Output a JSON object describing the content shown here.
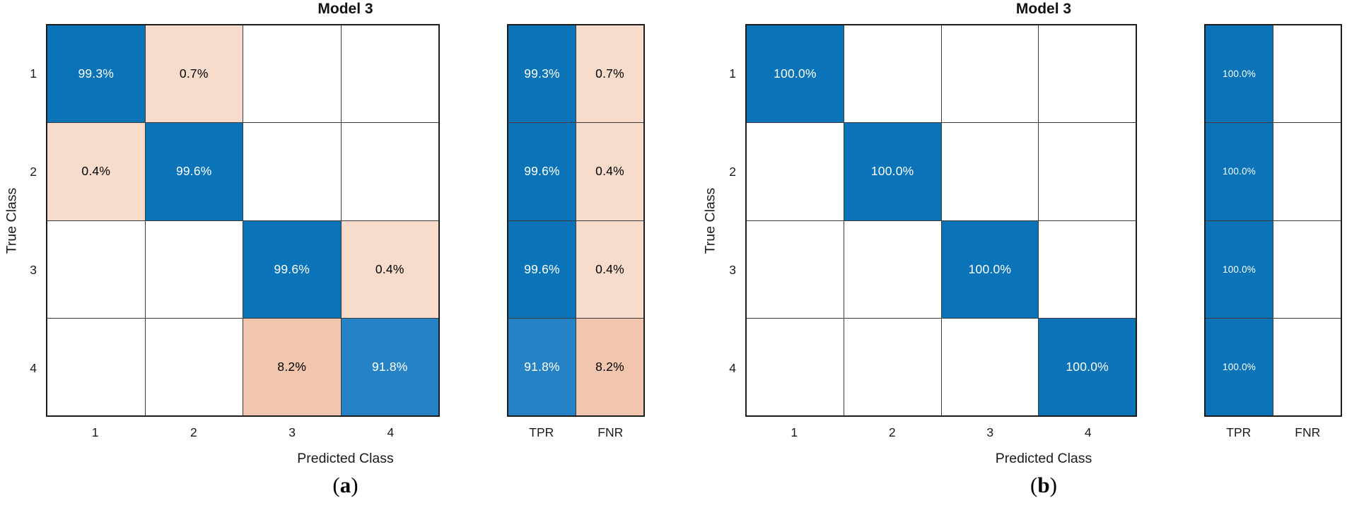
{
  "figure": {
    "background": "#ffffff",
    "colors": {
      "diag_strong_blue": "#0b74b9",
      "diag_light_blue": "#2583c5",
      "offdiag_light_pink": "#f7dccb",
      "offdiag_mid_pink": "#f2c6ae",
      "empty_cell": "#ffffff",
      "grid_line": "#3a3a3a",
      "frame": "#1c1c1c",
      "text_on_blue": "#ffffff",
      "text_on_pink": "#000000"
    }
  },
  "chart_data": [
    {
      "type": "heatmap",
      "subtype": "confusion-matrix",
      "title": "Model 3",
      "xlabel": "Predicted Class",
      "ylabel": "True Class",
      "caption": "(a)",
      "classes": [
        "1",
        "2",
        "3",
        "4"
      ],
      "matrix_percent": [
        [
          99.3,
          0.7,
          null,
          null
        ],
        [
          0.4,
          99.6,
          null,
          null
        ],
        [
          null,
          null,
          99.6,
          0.4
        ],
        [
          null,
          null,
          8.2,
          91.8
        ]
      ],
      "cell_labels": [
        [
          "99.3%",
          "0.7%",
          "",
          ""
        ],
        [
          "0.4%",
          "99.6%",
          "",
          ""
        ],
        [
          "",
          "",
          "99.6%",
          "0.4%"
        ],
        [
          "",
          "",
          "8.2%",
          "91.8%"
        ]
      ],
      "row_summary": {
        "columns": [
          "TPR",
          "FNR"
        ],
        "values": [
          [
            99.3,
            0.7
          ],
          [
            99.6,
            0.4
          ],
          [
            99.6,
            0.4
          ],
          [
            91.8,
            8.2
          ]
        ],
        "labels": [
          [
            "99.3%",
            "0.7%"
          ],
          [
            "99.6%",
            "0.4%"
          ],
          [
            "99.6%",
            "0.4%"
          ],
          [
            "91.8%",
            "8.2%"
          ]
        ]
      },
      "legend": null,
      "grid": "on"
    },
    {
      "type": "heatmap",
      "subtype": "confusion-matrix",
      "title": "Model 3",
      "xlabel": "Predicted Class",
      "ylabel": "True Class",
      "caption": "(b)",
      "classes": [
        "1",
        "2",
        "3",
        "4"
      ],
      "matrix_percent": [
        [
          100.0,
          null,
          null,
          null
        ],
        [
          null,
          100.0,
          null,
          null
        ],
        [
          null,
          null,
          100.0,
          null
        ],
        [
          null,
          null,
          null,
          100.0
        ]
      ],
      "cell_labels": [
        [
          "100.0%",
          "",
          "",
          ""
        ],
        [
          "",
          "100.0%",
          "",
          ""
        ],
        [
          "",
          "",
          "100.0%",
          ""
        ],
        [
          "",
          "",
          "",
          "100.0%"
        ]
      ],
      "row_summary": {
        "columns": [
          "TPR",
          "FNR"
        ],
        "values": [
          [
            100.0,
            null
          ],
          [
            100.0,
            null
          ],
          [
            100.0,
            null
          ],
          [
            100.0,
            null
          ]
        ],
        "labels": [
          [
            "100.0%",
            ""
          ],
          [
            "100.0%",
            ""
          ],
          [
            "100.0%",
            ""
          ],
          [
            "100.0%",
            ""
          ]
        ]
      },
      "legend": null,
      "grid": "on"
    }
  ]
}
